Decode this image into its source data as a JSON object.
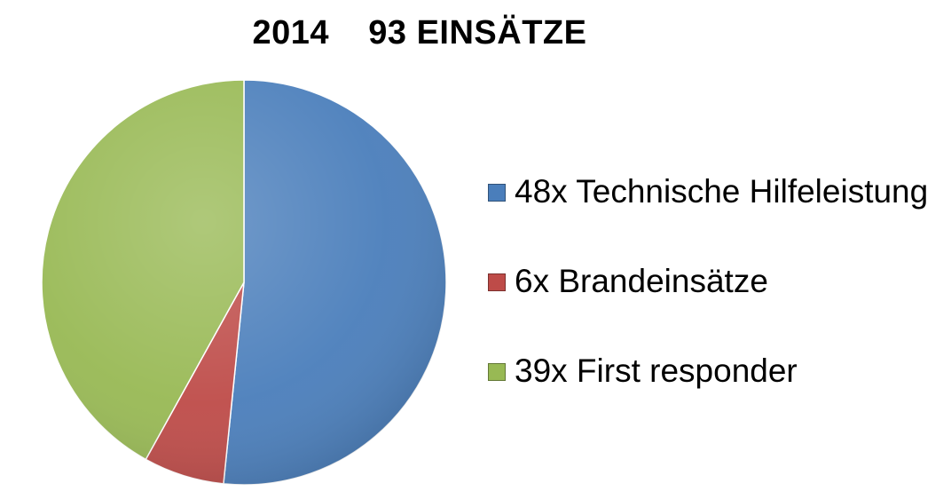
{
  "chart_data": {
    "type": "pie",
    "title": "2014    93 EINSÄTZE",
    "slices": [
      {
        "label": "48x Technische Hilfeleistung",
        "value": 48,
        "color": "#4a7ebb"
      },
      {
        "label": "6x Brandeinsätze",
        "value": 6,
        "color": "#be4b48"
      },
      {
        "label": "39x First responder",
        "value": 39,
        "color": "#98b954"
      }
    ],
    "legend_position": "right"
  }
}
